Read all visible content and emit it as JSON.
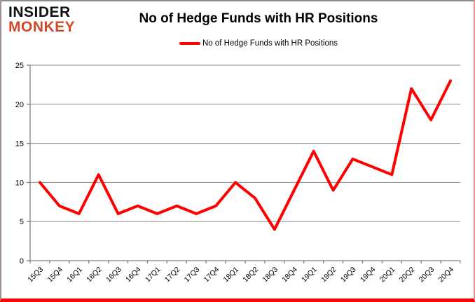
{
  "brand": {
    "line1": "INSIDER",
    "line2": "MONKEY",
    "accent_color": "#D2492A"
  },
  "header": {
    "title": "No of Hedge Funds with HR Positions"
  },
  "legend": {
    "label": "No of Hedge Funds with HR Positions",
    "marker_color": "#FF0000"
  },
  "chart_data": {
    "type": "line",
    "title": "No of Hedge Funds with HR Positions",
    "categories": [
      "15Q3",
      "15Q4",
      "16Q1",
      "16Q2",
      "16Q3",
      "16Q4",
      "17Q1",
      "17Q2",
      "17Q3",
      "17Q4",
      "18Q1",
      "18Q2",
      "18Q3",
      "18Q4",
      "19Q1",
      "19Q2",
      "19Q3",
      "19Q4",
      "20Q1",
      "20Q2",
      "20Q3",
      "20Q4"
    ],
    "series": [
      {
        "name": "No of Hedge Funds with HR Positions",
        "values": [
          10,
          7,
          6,
          11,
          6,
          7,
          6,
          7,
          6,
          7,
          10,
          8,
          4,
          9,
          14,
          9,
          13,
          12,
          11,
          22,
          18,
          23
        ],
        "color": "#FF0000"
      }
    ],
    "xlabel": "",
    "ylabel": "",
    "ylim": [
      0,
      25
    ],
    "yticks": [
      0,
      5,
      10,
      15,
      20,
      25
    ],
    "grid": true,
    "legend_position": "top",
    "grid_color": "#8C8C8C",
    "axis_color": "#808080",
    "label_color": "#000000"
  }
}
